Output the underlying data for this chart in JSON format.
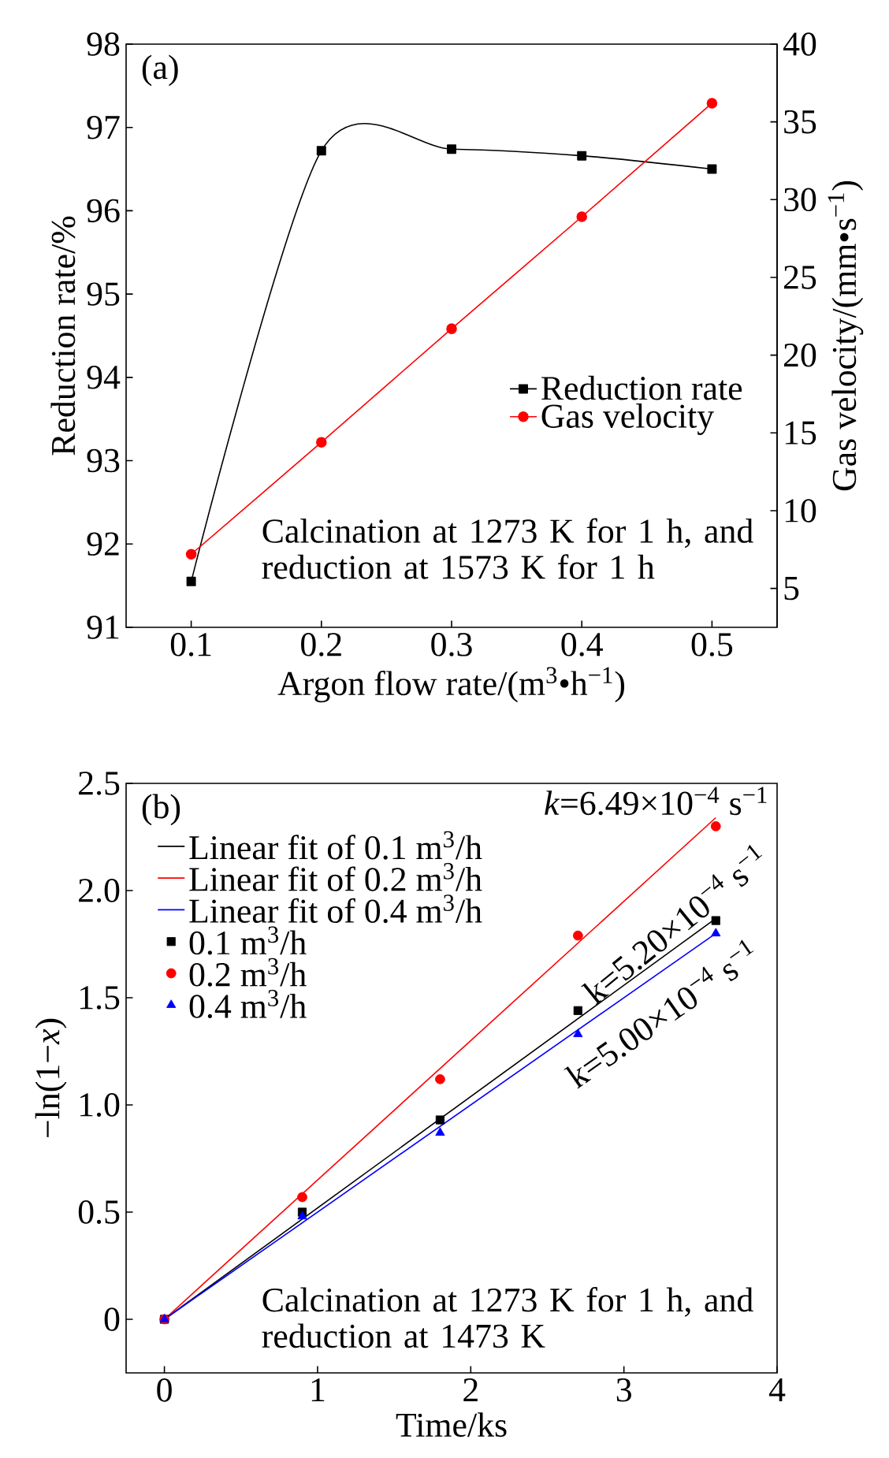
{
  "chart_data": [
    {
      "type": "line",
      "xlabel": "Argon flow rate/(m$^{3}$•h$^{−1}$)",
      "ylabel": "Reduction rate/%",
      "y2label": "Gas velocity/(mm•s$^{−1}$)",
      "annotations": [
        "(a)",
        "Calcination at 1273 K for 1 h, and reduction at 1573 K for 1 h"
      ],
      "x": [
        0.1,
        0.2,
        0.3,
        0.4,
        0.5
      ],
      "xlim": [
        0.05,
        0.55
      ],
      "xticks": [
        0.1,
        0.2,
        0.3,
        0.4,
        0.5
      ],
      "ylim": [
        91,
        98
      ],
      "yticks": [
        91,
        92,
        93,
        94,
        95,
        96,
        97,
        98
      ],
      "y2lim": [
        2.5,
        40
      ],
      "y2ticks": [
        5,
        10,
        15,
        20,
        25,
        30,
        35,
        40
      ],
      "legend": "right",
      "series": [
        {
          "name": "Reduction rate",
          "color": "#000000",
          "marker": "square",
          "values": [
            91.55,
            96.72,
            96.74,
            96.66,
            96.5
          ]
        },
        {
          "name": "Gas velocity",
          "color": "#ff0000",
          "marker": "circle",
          "axis": "y2",
          "values": [
            7.2,
            14.4,
            21.7,
            28.9,
            36.2
          ]
        }
      ]
    },
    {
      "type": "scatter",
      "xlabel": "Time/ks",
      "ylabel": "−ln(1−*x*)",
      "annotations": [
        "(b)",
        "*k*=6.49×10$^{−4}$ s$^{−1}$",
        "k=5.20×10$^{−4}$ s$^{−1}$",
        "k=5.00×10$^{−4}$ s$^{−1}$",
        "Calcination at 1273 K for 1 h, and reduction at 1473 K"
      ],
      "xlim": [
        -0.25,
        4
      ],
      "xticks": [
        0,
        1,
        2,
        3,
        4
      ],
      "ylim": [
        -0.25,
        2.5
      ],
      "yticks": [
        0,
        0.5,
        {
          "value": 1,
          "label": "1.0"
        },
        1.5,
        {
          "value": 2,
          "label": "2.0"
        },
        2.5
      ],
      "legend": "top left",
      "series": [
        {
          "name": "Linear fit of 0.1 m$^{3}$/h",
          "type": "line",
          "marker": "none",
          "color": "#000000",
          "x": [
            0,
            3.6
          ],
          "values": [
            0,
            1.87
          ]
        },
        {
          "name": "Linear fit of 0.2 m$^{3}$/h",
          "type": "line",
          "marker": "none",
          "color": "#ff0000",
          "x": [
            0,
            3.6
          ],
          "values": [
            0,
            2.34
          ]
        },
        {
          "name": "Linear fit of 0.4 m$^{3}$/h",
          "type": "line",
          "marker": "none",
          "color": "#0000ff",
          "x": [
            0,
            3.6
          ],
          "values": [
            0,
            1.8
          ]
        },
        {
          "name": "0.1 m$^{3}$/h",
          "marker": "square",
          "color": "#000000",
          "x": [
            0,
            0.9,
            1.8,
            2.7,
            3.6
          ],
          "values": [
            0,
            0.5,
            0.93,
            1.44,
            1.86
          ]
        },
        {
          "name": "0.2 m$^{3}$/h",
          "marker": "circle",
          "color": "#ff0000",
          "x": [
            0,
            0.9,
            1.8,
            2.7,
            3.6
          ],
          "values": [
            0,
            0.57,
            1.12,
            1.79,
            2.3
          ]
        },
        {
          "name": "0.4 m$^{3}$/h",
          "marker": "triangle",
          "color": "#0000ff",
          "x": [
            0,
            0.9,
            1.8,
            2.7,
            3.6
          ],
          "values": [
            0,
            0.48,
            0.87,
            1.33,
            1.8
          ]
        }
      ]
    }
  ]
}
